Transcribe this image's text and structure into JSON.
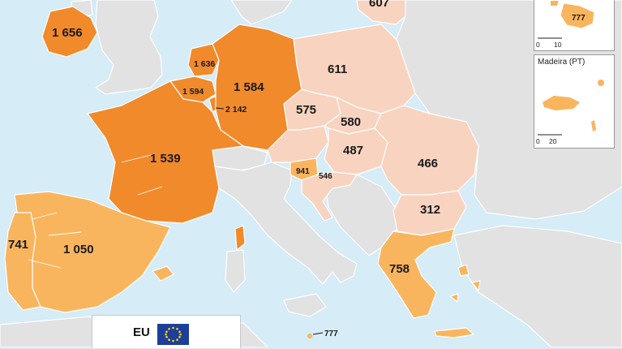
{
  "colors": {
    "sea": "#d6ecf6",
    "non_eu": "#e2e2e2",
    "class_high": "#f18a2b",
    "class_mid": "#f9b55e",
    "class_low": "#f8d3bf",
    "border": "#ffffff",
    "flag_blue": "#1d3f9a",
    "flag_star": "#ffd617"
  },
  "countries": [
    {
      "name": "IE",
      "value": "1 656",
      "class": "high"
    },
    {
      "name": "NL",
      "value": "1 636",
      "class": "high"
    },
    {
      "name": "BE",
      "value": "1 594",
      "class": "high"
    },
    {
      "name": "LU",
      "value": "2 142",
      "class": "high"
    },
    {
      "name": "DE",
      "value": "1 584",
      "class": "high"
    },
    {
      "name": "FR",
      "value": "1 539",
      "class": "high"
    },
    {
      "name": "ES",
      "value": "1 050",
      "class": "mid"
    },
    {
      "name": "PT",
      "value": "741",
      "class": "mid"
    },
    {
      "name": "SI",
      "value": "941",
      "class": "mid"
    },
    {
      "name": "GR",
      "value": "758",
      "class": "mid"
    },
    {
      "name": "MT",
      "value": "777",
      "class": "mid"
    },
    {
      "name": "LT",
      "value": "607",
      "class": "low"
    },
    {
      "name": "PL",
      "value": "611",
      "class": "low"
    },
    {
      "name": "CZ",
      "value": "575",
      "class": "low"
    },
    {
      "name": "SK",
      "value": "580",
      "class": "low"
    },
    {
      "name": "HU",
      "value": "487",
      "class": "low"
    },
    {
      "name": "HR",
      "value": "546",
      "class": "low"
    },
    {
      "name": "RO",
      "value": "466",
      "class": "low"
    },
    {
      "name": "BG",
      "value": "312",
      "class": "low"
    }
  ],
  "insets": {
    "malta": {
      "value": "777",
      "scale_start": "0",
      "scale_end": "10"
    },
    "madeira": {
      "title": "Madeira (PT)",
      "scale_start": "0",
      "scale_end": "20"
    }
  },
  "eu_legend": {
    "label": "EU"
  }
}
